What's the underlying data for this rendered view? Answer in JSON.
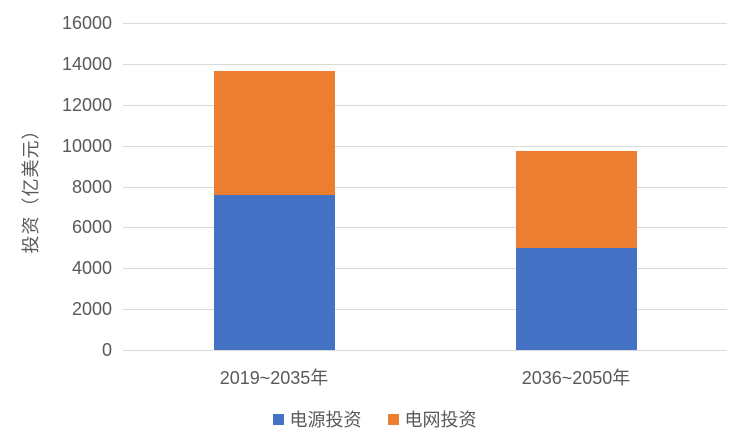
{
  "chart_data": {
    "type": "bar",
    "stacked": true,
    "title": "",
    "xlabel": "",
    "ylabel": "投资（亿美元）",
    "categories": [
      "2019~2035年",
      "2036~2050年"
    ],
    "series": [
      {
        "name": "电源投资",
        "color": "#4472C4",
        "values": [
          7600,
          5000
        ]
      },
      {
        "name": "电网投资",
        "color": "#ED7D31",
        "values": [
          6050,
          4750
        ]
      }
    ],
    "totals": [
      13650,
      9750
    ],
    "ylim": [
      0,
      16000
    ],
    "ytick_step": 2000,
    "yticks": [
      0,
      2000,
      4000,
      6000,
      8000,
      10000,
      12000,
      14000,
      16000
    ],
    "grid": true,
    "legend_position": "bottom",
    "colors": {
      "gridline": "#D9D9D9",
      "axis_text": "#595959",
      "background": "#FFFFFF"
    }
  }
}
